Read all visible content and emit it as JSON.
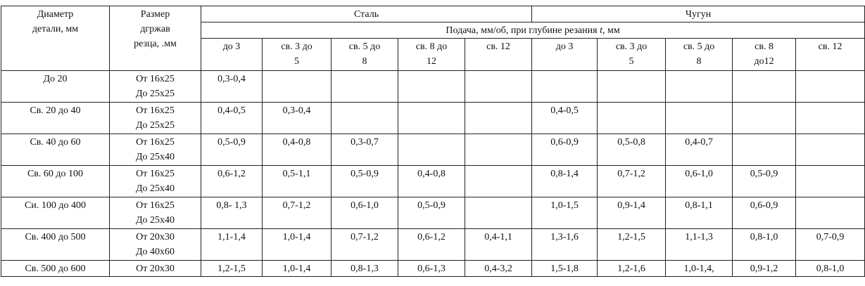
{
  "table": {
    "header": {
      "diameter": [
        "Диаметр",
        "детали, мм"
      ],
      "holder": [
        "Размер",
        "дгржав",
        "резца, .мм"
      ],
      "steel": "Сталь",
      "cast_iron": "Чугун",
      "feed": [
        "Подача, мм/об, при глубине резания ",
        "t",
        ", мм"
      ],
      "depths": [
        [
          "до 3"
        ],
        [
          "св. 3 до",
          "5"
        ],
        [
          "св. 5 до",
          "8"
        ],
        [
          "св. 8 до",
          "12"
        ],
        [
          "св. 12"
        ],
        [
          "до 3"
        ],
        [
          "св. 3 до",
          "5"
        ],
        [
          "св. 5 до",
          "8"
        ],
        [
          "св. 8",
          "до12"
        ],
        [
          "св. 12"
        ]
      ]
    },
    "rows": [
      {
        "diameter": "До 20",
        "holder": [
          "От 16x25",
          "До 25x25"
        ],
        "feeds": [
          "0,3-0,4",
          null,
          null,
          null,
          null,
          null,
          null,
          null,
          null,
          null
        ]
      },
      {
        "diameter": "Св. 20 до 40",
        "holder": [
          "От 16x25",
          "До 25x25"
        ],
        "feeds": [
          "0,4-0,5",
          "0,3-0,4",
          null,
          null,
          null,
          "0,4-0,5",
          null,
          null,
          null,
          null
        ]
      },
      {
        "diameter": "Св. 40 до 60",
        "holder": [
          "От 16x25",
          "До 25x40"
        ],
        "feeds": [
          "0,5-0,9",
          "0,4-0,8",
          "0,3-0,7",
          null,
          null,
          "0,6-0,9",
          "0,5-0,8",
          "0,4-0,7",
          null,
          null
        ]
      },
      {
        "diameter": "Св. 60 до 100",
        "holder": [
          "От 16x25",
          "До 25x40"
        ],
        "feeds": [
          "0,6-1,2",
          "0,5-1,1",
          "0,5-0,9",
          "0,4-0,8",
          null,
          "0,8-1,4",
          "0,7-1,2",
          "0,6-1,0",
          "0,5-0,9",
          null
        ]
      },
      {
        "diameter": "Си. 100 до 400",
        "holder": [
          "От 16x25",
          "До 25x40"
        ],
        "feeds": [
          "0,8- 1,3",
          "0,7-1,2",
          "0,6-1,0",
          "0,5-0,9",
          null,
          "1,0-1,5",
          "0,9-1,4",
          "0,8-1,1",
          "0,6-0,9",
          null
        ]
      },
      {
        "diameter": "Св. 400 до 500",
        "holder": [
          "От 20x30",
          "До 40x60"
        ],
        "feeds": [
          "1,1-1,4",
          "1,0-1,4",
          "0,7-1,2",
          "0,6-1,2",
          "0,4-1,1",
          "1,3-1,6",
          "1,2-1,5",
          "1,1-1,3",
          "0,8-1,0",
          "0,7-0,9"
        ]
      },
      {
        "diameter": "Св. 500 до 600",
        "holder": [
          "От 20x30"
        ],
        "feeds": [
          "1,2-1,5",
          "1,0-1,4",
          "0,8-1,3",
          "0,6-1,3",
          "0,4-3,2",
          "1,5-1,8",
          "1,2-1,6",
          "1,0-1,4,",
          "0,9-1,2",
          "0,8-1,0"
        ]
      }
    ]
  }
}
